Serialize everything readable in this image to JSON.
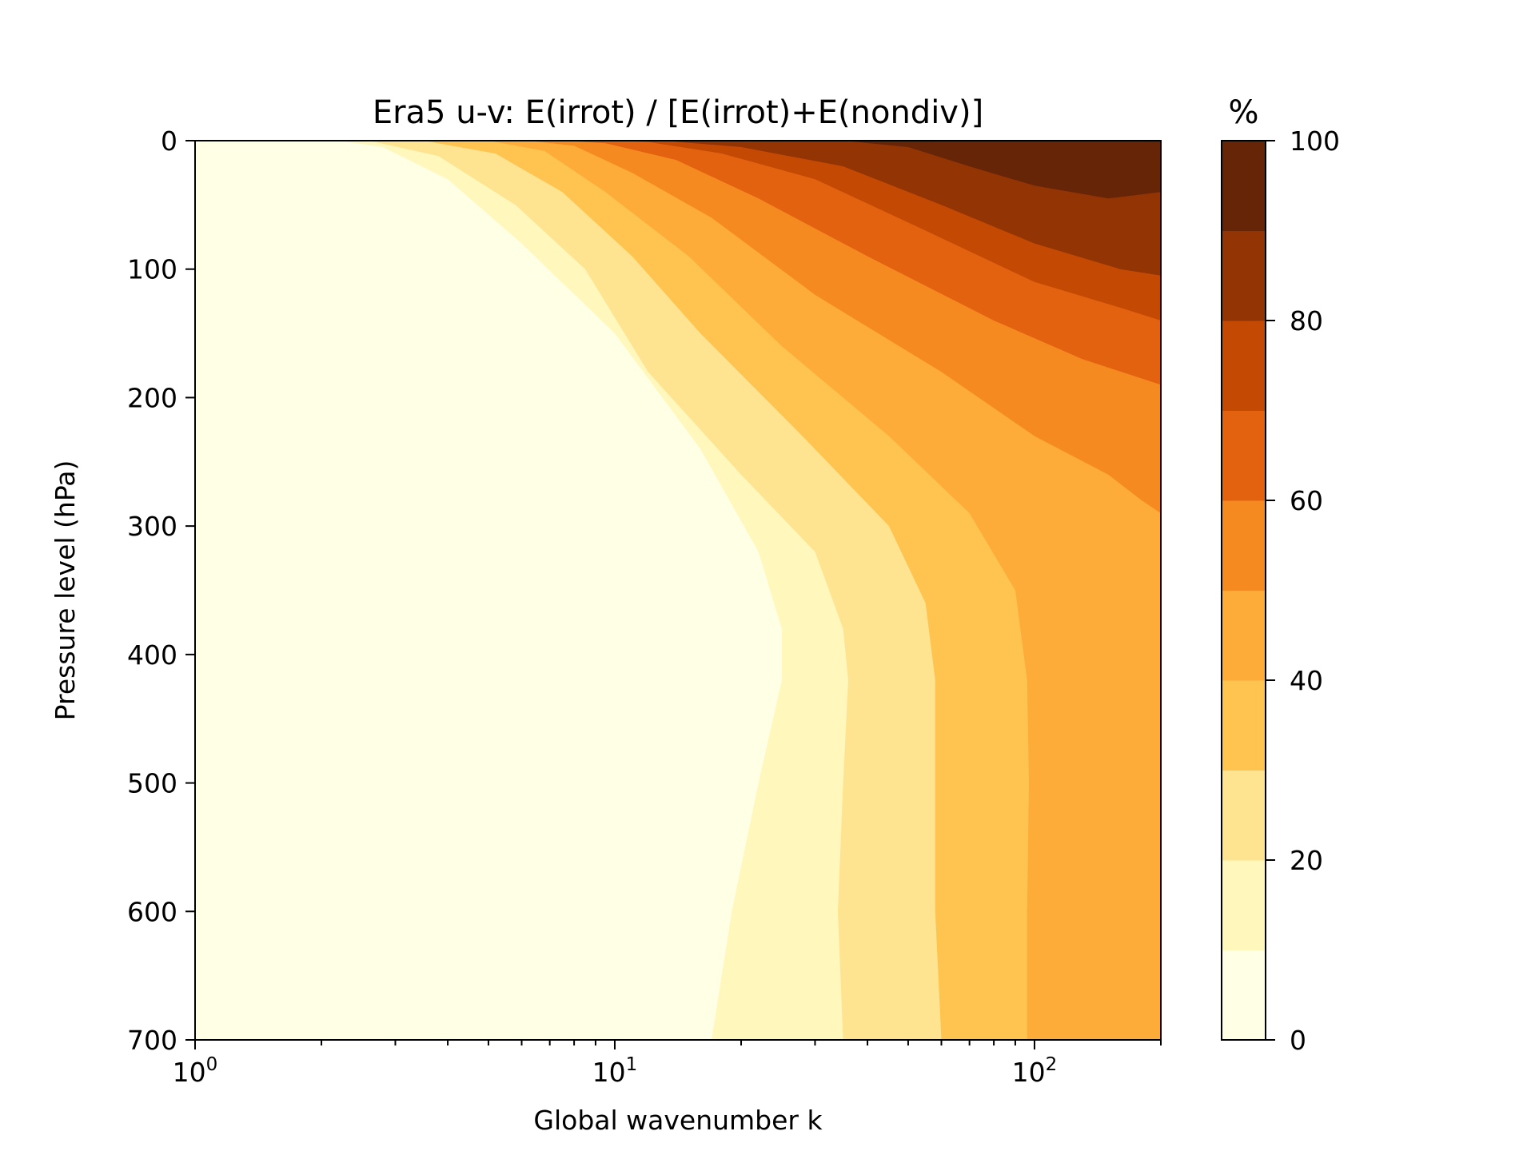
{
  "chart_data": {
    "type": "contourf",
    "title": "Era5 u-v: E(irrot) / [E(irrot)+E(nondiv)]",
    "xlabel": "Global wavenumber k",
    "ylabel": "Pressure level (hPa)",
    "x_scale": "log",
    "xlim": [
      1,
      200
    ],
    "ylim": [
      700,
      0
    ],
    "y_inverted": true,
    "x_major_ticks": [
      {
        "value": 1,
        "base": "10",
        "exp": "0"
      },
      {
        "value": 10,
        "base": "10",
        "exp": "1"
      },
      {
        "value": 100,
        "base": "10",
        "exp": "2"
      }
    ],
    "y_ticks": [
      0,
      100,
      200,
      300,
      400,
      500,
      600,
      700
    ],
    "y_tick_labels": [
      "0",
      "100",
      "200",
      "300",
      "400",
      "500",
      "600",
      "700"
    ],
    "colorbar": {
      "label": "%",
      "levels": [
        0,
        10,
        20,
        30,
        40,
        50,
        60,
        70,
        80,
        90,
        100
      ],
      "ticks": [
        0,
        20,
        40,
        60,
        80,
        100
      ],
      "tick_labels": [
        "0",
        "20",
        "40",
        "60",
        "80",
        "100"
      ],
      "colors": [
        "#ffffe5",
        "#fff7bc",
        "#fee391",
        "#fec44f",
        "#fdac3a",
        "#f58b20",
        "#e2620f",
        "#c44a04",
        "#933404",
        "#662506"
      ]
    },
    "contour_boundaries": [
      {
        "level": 10,
        "points": [
          [
            2.2,
            0
          ],
          [
            2.8,
            5
          ],
          [
            4.0,
            30
          ],
          [
            6.0,
            80
          ],
          [
            10,
            150
          ],
          [
            16,
            240
          ],
          [
            22,
            320
          ],
          [
            25,
            380
          ],
          [
            25,
            420
          ],
          [
            22,
            500
          ],
          [
            19,
            600
          ],
          [
            17,
            700
          ]
        ]
      },
      {
        "level": 20,
        "points": [
          [
            2.6,
            0
          ],
          [
            3.8,
            12
          ],
          [
            5.8,
            50
          ],
          [
            8.5,
            100
          ],
          [
            12,
            180
          ],
          [
            20,
            260
          ],
          [
            30,
            320
          ],
          [
            35,
            380
          ],
          [
            36,
            420
          ],
          [
            35,
            500
          ],
          [
            34,
            600
          ],
          [
            35,
            700
          ]
        ]
      },
      {
        "level": 30,
        "points": [
          [
            3.5,
            0
          ],
          [
            5.2,
            10
          ],
          [
            7.5,
            40
          ],
          [
            11,
            90
          ],
          [
            16,
            150
          ],
          [
            28,
            230
          ],
          [
            45,
            300
          ],
          [
            55,
            360
          ],
          [
            58,
            420
          ],
          [
            58,
            500
          ],
          [
            58,
            600
          ],
          [
            60,
            700
          ]
        ]
      },
      {
        "level": 40,
        "points": [
          [
            5.0,
            0
          ],
          [
            6.8,
            8
          ],
          [
            9.5,
            40
          ],
          [
            15,
            90
          ],
          [
            25,
            160
          ],
          [
            45,
            230
          ],
          [
            70,
            290
          ],
          [
            90,
            350
          ],
          [
            96,
            420
          ],
          [
            97,
            500
          ],
          [
            96,
            600
          ],
          [
            96,
            700
          ]
        ]
      },
      {
        "level": 50,
        "points": [
          [
            6.2,
            0
          ],
          [
            8.0,
            4
          ],
          [
            11,
            25
          ],
          [
            17,
            60
          ],
          [
            30,
            120
          ],
          [
            60,
            180
          ],
          [
            100,
            230
          ],
          [
            150,
            260
          ],
          [
            180,
            280
          ],
          [
            200,
            290
          ]
        ]
      },
      {
        "level": 60,
        "points": [
          [
            7.5,
            0
          ],
          [
            9.5,
            2
          ],
          [
            14,
            15
          ],
          [
            22,
            45
          ],
          [
            40,
            90
          ],
          [
            80,
            140
          ],
          [
            130,
            170
          ],
          [
            200,
            190
          ]
        ]
      },
      {
        "level": 70,
        "points": [
          [
            9.5,
            0
          ],
          [
            12,
            1
          ],
          [
            18,
            10
          ],
          [
            30,
            30
          ],
          [
            55,
            70
          ],
          [
            100,
            110
          ],
          [
            160,
            130
          ],
          [
            200,
            140
          ]
        ]
      },
      {
        "level": 80,
        "points": [
          [
            13,
            0
          ],
          [
            20,
            5
          ],
          [
            35,
            20
          ],
          [
            60,
            50
          ],
          [
            100,
            80
          ],
          [
            160,
            100
          ],
          [
            200,
            105
          ]
        ]
      },
      {
        "level": 90,
        "points": [
          [
            35,
            0
          ],
          [
            50,
            5
          ],
          [
            70,
            20
          ],
          [
            100,
            35
          ],
          [
            150,
            45
          ],
          [
            200,
            40
          ]
        ]
      }
    ]
  }
}
